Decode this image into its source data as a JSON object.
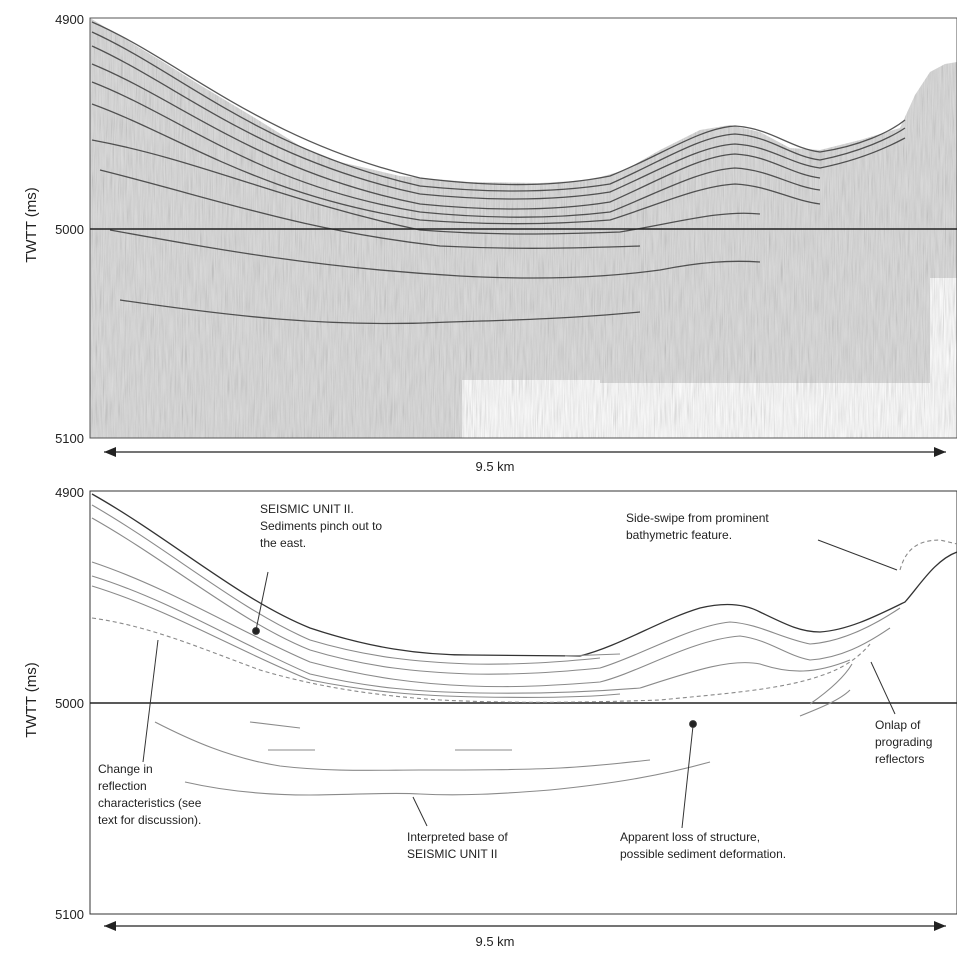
{
  "top_panel": {
    "y_ticks": [
      "4900",
      "5000",
      "5100"
    ],
    "ylabel": "TWTT (ms)",
    "scale_bar": "9.5 km"
  },
  "bottom_panel": {
    "y_ticks": [
      "4900",
      "5000",
      "5100"
    ],
    "ylabel": "TWTT (ms)",
    "scale_bar": "9.5 km",
    "annotations": {
      "seismic_unit": [
        "SEISMIC UNIT II.",
        "Sediments pinch out to",
        "the east."
      ],
      "side_swipe": [
        "Side-swipe from prominent",
        "bathymetric feature."
      ],
      "change_reflection": [
        "Change in",
        "reflection",
        "characteristics (see",
        "text for discussion)."
      ],
      "interpreted_base": [
        "Interpreted base of",
        "SEISMIC UNIT II"
      ],
      "apparent_loss": [
        "Apparent loss of structure,",
        "possible sediment deformation."
      ],
      "onlap": [
        "Onlap of",
        "prograding",
        "reflectors"
      ]
    }
  },
  "colors": {
    "ink": "#222222",
    "profile_dark": "#333333",
    "profile_light": "#9a9a9a"
  }
}
